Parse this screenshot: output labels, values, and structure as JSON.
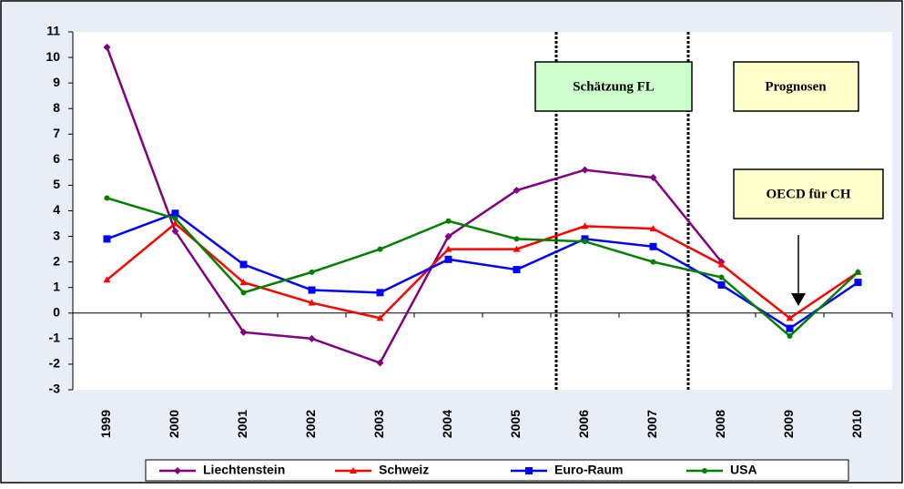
{
  "chart_data": {
    "type": "line",
    "categories": [
      "1999",
      "2000",
      "2001",
      "2002",
      "2003",
      "2004",
      "2005",
      "2006",
      "2007",
      "2008",
      "2009",
      "2010"
    ],
    "series": [
      {
        "name": "Liechtenstein",
        "color": "#800080",
        "marker": "diamond",
        "values": [
          10.4,
          3.2,
          -0.75,
          -1.0,
          -1.95,
          3.0,
          4.8,
          5.6,
          5.3,
          2.0,
          null,
          null
        ]
      },
      {
        "name": "Schweiz",
        "color": "#ff0000",
        "marker": "triangle",
        "values": [
          1.3,
          3.5,
          1.2,
          0.4,
          -0.2,
          2.5,
          2.5,
          3.4,
          3.3,
          1.9,
          -0.2,
          1.6
        ]
      },
      {
        "name": "Euro-Raum",
        "color": "#0000ff",
        "marker": "square",
        "values": [
          2.9,
          3.9,
          1.9,
          0.9,
          0.8,
          2.1,
          1.7,
          2.9,
          2.6,
          1.1,
          -0.6,
          1.2
        ]
      },
      {
        "name": "USA",
        "color": "#008000",
        "marker": "circle",
        "values": [
          4.5,
          3.7,
          0.8,
          1.6,
          2.5,
          3.6,
          2.9,
          2.8,
          2.0,
          1.4,
          -0.9,
          1.6
        ]
      }
    ],
    "ylim": [
      -3,
      11
    ],
    "yticks": [
      -3,
      -2,
      -1,
      0,
      1,
      2,
      3,
      4,
      5,
      6,
      7,
      8,
      9,
      10,
      11
    ],
    "annotations": [
      "Schätzung FL",
      "Prognosen",
      "OECD für CH"
    ],
    "legend": "bottom"
  }
}
